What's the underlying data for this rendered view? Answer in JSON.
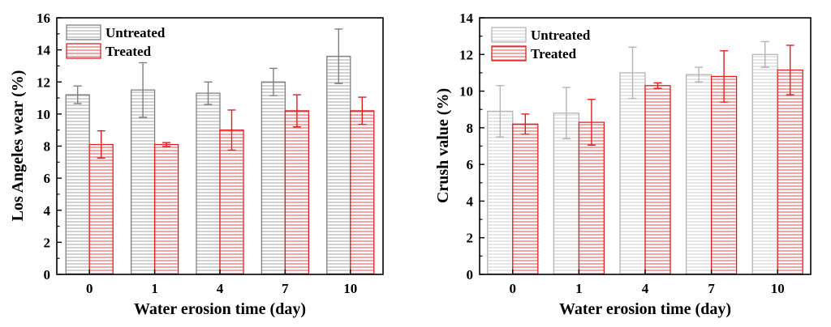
{
  "chart_data": [
    {
      "type": "bar",
      "title": "",
      "xlabel": "Water erosion time (day)",
      "ylabel": "Los Angeles wear (%)",
      "ylim": [
        0,
        16
      ],
      "yticks": [
        0,
        2,
        4,
        6,
        8,
        10,
        12,
        14,
        16
      ],
      "categories": [
        "0",
        "1",
        "4",
        "7",
        "10"
      ],
      "legend_position": "top-left",
      "series": [
        {
          "name": "Untreated",
          "color": "#808080",
          "values": [
            11.2,
            11.5,
            11.3,
            12.0,
            13.6
          ],
          "errors": [
            0.55,
            1.7,
            0.7,
            0.85,
            1.7
          ]
        },
        {
          "name": "Treated",
          "color": "#e02020",
          "values": [
            8.1,
            8.1,
            9.0,
            10.2,
            10.2
          ],
          "errors": [
            0.85,
            0.12,
            1.25,
            1.0,
            0.85
          ]
        }
      ]
    },
    {
      "type": "bar",
      "title": "",
      "xlabel": "Water erosion time (day)",
      "ylabel": "Crush value (%)",
      "ylim": [
        0,
        14
      ],
      "yticks": [
        0,
        2,
        4,
        6,
        8,
        10,
        12,
        14
      ],
      "categories": [
        "0",
        "1",
        "4",
        "7",
        "10"
      ],
      "legend_position": "top-left",
      "series": [
        {
          "name": "Untreated",
          "color": "#b4b4b4",
          "values": [
            8.9,
            8.8,
            11.0,
            10.9,
            12.0
          ],
          "errors": [
            1.4,
            1.4,
            1.4,
            0.4,
            0.7
          ]
        },
        {
          "name": "Treated",
          "color": "#e02020",
          "values": [
            8.2,
            8.3,
            10.3,
            10.8,
            11.15
          ],
          "errors": [
            0.55,
            1.25,
            0.15,
            1.4,
            1.35
          ]
        }
      ]
    }
  ]
}
